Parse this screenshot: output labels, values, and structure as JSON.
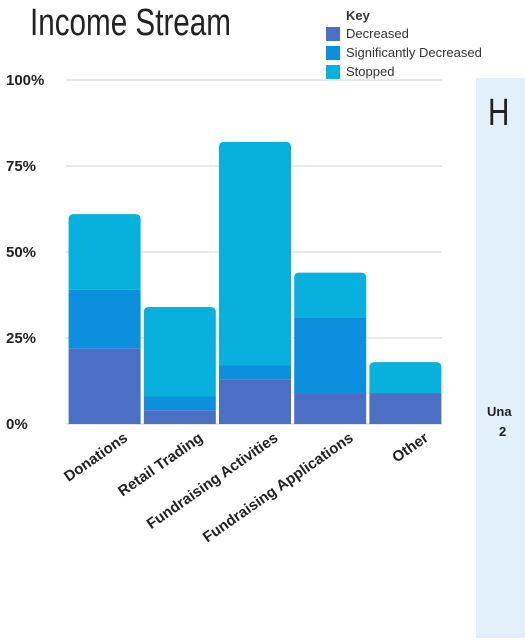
{
  "chart_data": {
    "type": "bar",
    "stacked": true,
    "title": "Income Stream",
    "categories": [
      "Donations",
      "Retail Trading",
      "Fundraising Activities",
      "Fundraising Applications",
      "Other"
    ],
    "series": [
      {
        "name": "Decreased",
        "color": "#4a6fc5",
        "values": [
          22,
          4,
          13,
          9,
          9
        ]
      },
      {
        "name": "Significantly Decreased",
        "color": "#0c8fdc",
        "values": [
          17,
          4,
          4,
          22,
          0
        ]
      },
      {
        "name": "Stopped",
        "color": "#08b0de",
        "values": [
          22,
          26,
          65,
          13,
          9
        ]
      }
    ],
    "ylim": [
      0,
      100
    ],
    "yticks": [
      "0%",
      "25%",
      "50%",
      "75%",
      "100%"
    ],
    "grid": true,
    "legend": {
      "title": "Key",
      "placement": "top-right"
    }
  },
  "side_panel": {
    "heading": "H",
    "text_line1": "Una",
    "text_line2": "2"
  }
}
